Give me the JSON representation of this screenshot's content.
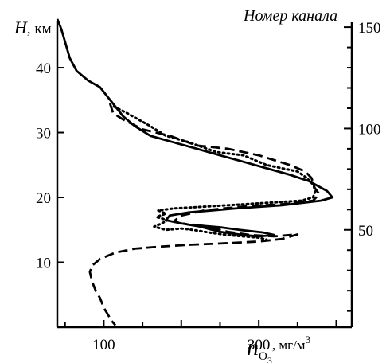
{
  "chart_data": {
    "type": "line",
    "y_label_symbol": "H",
    "y_label_unit": ", км",
    "x_label_symbol": "n",
    "x_label_subscript": "O",
    "x_label_subsubscript": "3",
    "x_label_unit": ", мг/м",
    "x_label_unit_exp": "3",
    "right_axis_label": "Номер канала",
    "xlim": [
      40,
      420
    ],
    "ylim": [
      0,
      47
    ],
    "x_ticks": [
      100,
      300
    ],
    "y_ticks": [
      10,
      20,
      30,
      40
    ],
    "right_axis": {
      "channel_at_H0": 2,
      "channel_per_km": 3.2
    },
    "right_ticks": [
      50,
      100,
      150
    ],
    "grid": false,
    "series": [
      {
        "style": "solid",
        "points": [
          [
            40,
            47.5
          ],
          [
            45,
            46
          ],
          [
            50,
            44
          ],
          [
            56,
            41.5
          ],
          [
            65,
            39.5
          ],
          [
            80,
            38
          ],
          [
            95,
            37
          ],
          [
            105,
            35.5
          ],
          [
            115,
            34
          ],
          [
            125,
            32.5
          ],
          [
            140,
            31
          ],
          [
            160,
            29.5
          ],
          [
            190,
            28.5
          ],
          [
            220,
            27.5
          ],
          [
            250,
            26.5
          ],
          [
            280,
            25.5
          ],
          [
            310,
            24.5
          ],
          [
            340,
            23.5
          ],
          [
            365,
            22.5
          ],
          [
            388,
            21
          ],
          [
            395,
            20
          ],
          [
            380,
            19.5
          ],
          [
            330,
            18.8
          ],
          [
            270,
            18.3
          ],
          [
            210,
            17.7
          ],
          [
            185,
            17.2
          ],
          [
            180,
            16.5
          ],
          [
            200,
            16
          ],
          [
            225,
            15.5
          ],
          [
            240,
            15
          ],
          [
            250,
            14.7
          ],
          [
            280,
            14.2
          ],
          [
            300,
            14
          ],
          [
            320,
            14.2
          ],
          [
            305,
            14.6
          ],
          [
            275,
            15
          ],
          [
            250,
            15.4
          ],
          [
            230,
            15.6
          ],
          [
            215,
            15.8
          ]
        ]
      },
      {
        "style": "dashed",
        "points": [
          [
            108,
            34.5
          ],
          [
            112,
            33
          ],
          [
            125,
            32
          ],
          [
            150,
            30.5
          ],
          [
            185,
            29.5
          ],
          [
            220,
            28
          ],
          [
            260,
            27.5
          ],
          [
            300,
            26.5
          ],
          [
            340,
            25
          ],
          [
            360,
            24
          ],
          [
            368,
            23
          ],
          [
            372,
            21.5
          ],
          [
            378,
            20.5
          ],
          [
            370,
            19.5
          ],
          [
            335,
            19
          ],
          [
            280,
            18.6
          ],
          [
            230,
            18
          ],
          [
            200,
            17.2
          ],
          [
            190,
            16.3
          ],
          [
            210,
            15.8
          ],
          [
            240,
            15.3
          ],
          [
            260,
            14.7
          ],
          [
            290,
            14.2
          ],
          [
            320,
            14
          ],
          [
            350,
            14.3
          ],
          [
            330,
            13.6
          ],
          [
            300,
            13.2
          ],
          [
            250,
            12.9
          ],
          [
            210,
            12.7
          ],
          [
            170,
            12.4
          ],
          [
            140,
            12.1
          ],
          [
            115,
            11.5
          ],
          [
            95,
            10.5
          ],
          [
            85,
            9.5
          ],
          [
            82,
            8.5
          ],
          [
            85,
            7
          ],
          [
            90,
            5.5
          ],
          [
            95,
            4.5
          ],
          [
            100,
            3
          ],
          [
            105,
            2
          ],
          [
            110,
            1
          ],
          [
            115,
            0.3
          ]
        ]
      },
      {
        "style": "dotted",
        "points": [
          [
            113,
            34
          ],
          [
            130,
            33
          ],
          [
            160,
            31
          ],
          [
            180,
            29.5
          ],
          [
            210,
            28.5
          ],
          [
            245,
            27
          ],
          [
            280,
            26.5
          ],
          [
            310,
            25
          ],
          [
            330,
            24.5
          ],
          [
            350,
            24
          ],
          [
            362,
            23
          ],
          [
            370,
            22
          ],
          [
            373,
            21
          ],
          [
            370,
            20
          ],
          [
            355,
            19.5
          ],
          [
            260,
            18.8
          ],
          [
            190,
            18.3
          ],
          [
            170,
            18
          ],
          [
            180,
            17.5
          ],
          [
            168,
            17
          ],
          [
            182,
            16.5
          ],
          [
            175,
            16
          ],
          [
            165,
            15.5
          ],
          [
            180,
            15
          ],
          [
            200,
            15.2
          ],
          [
            215,
            15
          ],
          [
            235,
            14.6
          ],
          [
            260,
            14.2
          ],
          [
            300,
            13.8
          ],
          [
            310,
            13.5
          ]
        ]
      }
    ]
  }
}
